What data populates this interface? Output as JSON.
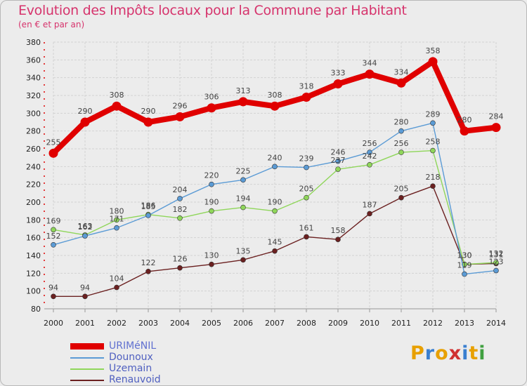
{
  "chart_data": {
    "type": "line",
    "title": "Evolution des Impôts locaux pour la Commune par Habitant",
    "subtitle": "(en € et par an)",
    "x": [
      "2000",
      "2001",
      "2002",
      "2003",
      "2004",
      "2005",
      "2006",
      "2007",
      "2008",
      "2009",
      "2010",
      "2011",
      "2012",
      "2013",
      "2014"
    ],
    "ylim": [
      80,
      380
    ],
    "yticks": [
      80,
      100,
      120,
      140,
      160,
      180,
      200,
      220,
      240,
      260,
      280,
      300,
      320,
      340,
      360,
      380
    ],
    "grid": true,
    "legend_position": "bottom-left",
    "series": [
      {
        "name": "URIMéNIL",
        "color": "#e00000",
        "values": [
          255,
          290,
          308,
          290,
          296,
          306,
          313,
          308,
          318,
          333,
          344,
          334,
          358,
          280,
          284
        ]
      },
      {
        "name": "Dounoux",
        "color": "#5b9bd5",
        "values": [
          152,
          162,
          171,
          185,
          204,
          220,
          225,
          240,
          239,
          246,
          256,
          280,
          289,
          119,
          123
        ]
      },
      {
        "name": "Uzemain",
        "color": "#8fd65a",
        "values": [
          169,
          163,
          180,
          186,
          182,
          190,
          194,
          190,
          205,
          237,
          242,
          256,
          258,
          130,
          132
        ]
      },
      {
        "name": "Renauvoid",
        "color": "#6b2020",
        "values": [
          94,
          94,
          104,
          122,
          126,
          130,
          135,
          145,
          161,
          158,
          187,
          205,
          218,
          130,
          131
        ]
      }
    ],
    "data_labels": [
      [
        "255",
        "290",
        "308",
        "290",
        "296",
        "306",
        "313",
        "308",
        "318",
        "333",
        "344",
        "334",
        "358",
        "280",
        "284"
      ],
      [
        "152",
        "162",
        "171",
        "185",
        "204",
        "220",
        "225",
        "240",
        "239",
        "246",
        "256",
        "280",
        "289",
        "119",
        "123"
      ],
      [
        "169",
        "163",
        "180",
        "186",
        "182",
        "190",
        "194",
        "190",
        "205",
        "237",
        "242",
        "256",
        "258",
        "130",
        "132"
      ],
      [
        "94",
        "94",
        "104",
        "122",
        "126",
        "130",
        "135",
        "145",
        "161",
        "158",
        "187",
        "205",
        "218",
        "130",
        "131"
      ]
    ]
  },
  "logo": {
    "text": "Proxiti",
    "letters": [
      {
        "ch": "P",
        "color": "#e8a000"
      },
      {
        "ch": "r",
        "color": "#3a7fd0"
      },
      {
        "ch": "o",
        "color": "#e8a000"
      },
      {
        "ch": "x",
        "color": "#d03030"
      },
      {
        "ch": "i",
        "color": "#3a7fd0"
      },
      {
        "ch": "t",
        "color": "#e8a000"
      },
      {
        "ch": "i",
        "color": "#40a040"
      }
    ]
  }
}
